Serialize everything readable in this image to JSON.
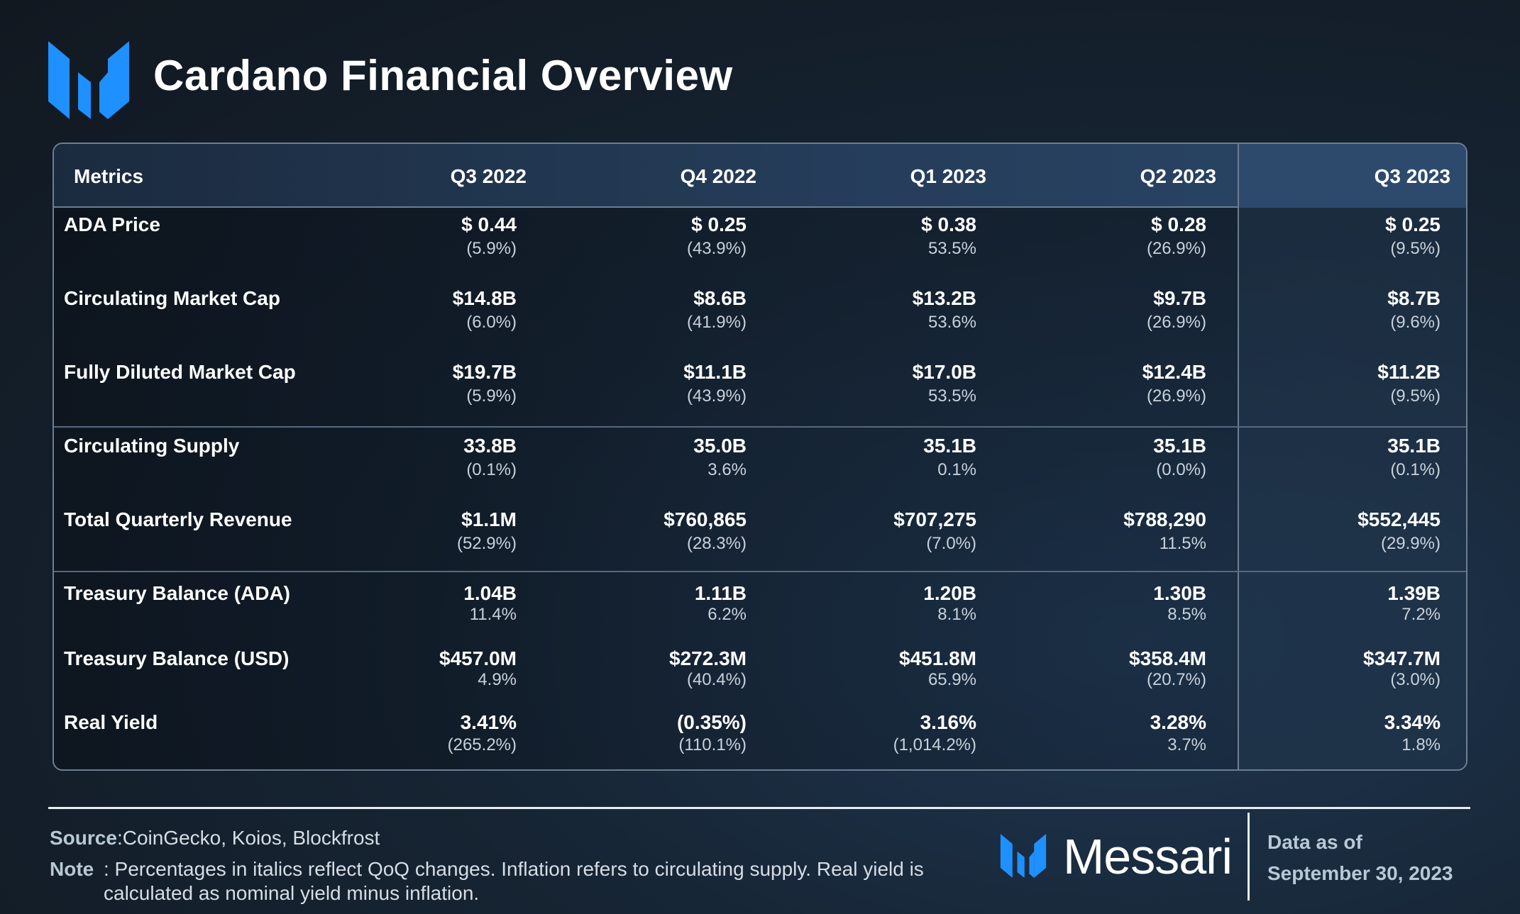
{
  "title": "Cardano Financial Overview",
  "colors": {
    "brand_blue": "#1e90ff",
    "border": "#6b7e92"
  },
  "chart_data": {
    "type": "table",
    "columns": [
      "Metrics",
      "Q3 2022",
      "Q4 2022",
      "Q1 2023",
      "Q2 2023",
      "Q3 2023"
    ],
    "rows": [
      {
        "metric": "ADA Price",
        "values": [
          "$ 0.44",
          "$ 0.25",
          "$ 0.38",
          "$ 0.28",
          "$ 0.25"
        ],
        "changes": [
          "(5.9%)",
          "(43.9%)",
          "53.5%",
          "(26.9%)",
          "(9.5%)"
        ]
      },
      {
        "metric": "Circulating Market Cap",
        "values": [
          "$14.8B",
          "$8.6B",
          "$13.2B",
          "$9.7B",
          "$8.7B"
        ],
        "changes": [
          "(6.0%)",
          "(41.9%)",
          "53.6%",
          "(26.9%)",
          "(9.6%)"
        ]
      },
      {
        "metric": "Fully Diluted Market Cap",
        "values": [
          "$19.7B",
          "$11.1B",
          "$17.0B",
          "$12.4B",
          "$11.2B"
        ],
        "changes": [
          "(5.9%)",
          "(43.9%)",
          "53.5%",
          "(26.9%)",
          "(9.5%)"
        ]
      },
      {
        "metric": "Circulating Supply",
        "values": [
          "33.8B",
          "35.0B",
          "35.1B",
          "35.1B",
          "35.1B"
        ],
        "changes": [
          "(0.1%)",
          "3.6%",
          "0.1%",
          "(0.0%)",
          "(0.1%)"
        ]
      },
      {
        "metric": "Total Quarterly Revenue",
        "values": [
          "$1.1M",
          "$760,865",
          "$707,275",
          "$788,290",
          "$552,445"
        ],
        "changes": [
          "(52.9%)",
          "(28.3%)",
          "(7.0%)",
          "11.5%",
          "(29.9%)"
        ]
      },
      {
        "metric": "Treasury Balance (ADA)",
        "values": [
          "1.04B",
          "1.11B",
          "1.20B",
          "1.30B",
          "1.39B"
        ],
        "changes": [
          "11.4%",
          "6.2%",
          "8.1%",
          "8.5%",
          "7.2%"
        ]
      },
      {
        "metric": "Treasury Balance (USD)",
        "values": [
          "$457.0M",
          "$272.3M",
          "$451.8M",
          "$358.4M",
          "$347.7M"
        ],
        "changes": [
          "4.9%",
          "(40.4%)",
          "65.9%",
          "(20.7%)",
          "(3.0%)"
        ]
      },
      {
        "metric": "Real Yield",
        "values": [
          "3.41%",
          "(0.35%)",
          "3.16%",
          "3.28%",
          "3.34%"
        ],
        "changes": [
          "(265.2%)",
          "(110.1%)",
          "(1,014.2%)",
          "3.7%",
          "1.8%"
        ]
      }
    ]
  },
  "footer": {
    "source_label": "Source",
    "source_text": ":CoinGecko, Koios, Blockfrost",
    "note_label": "Note",
    "note_text": ": Percentages in italics reflect QoQ changes. Inflation refers to circulating supply. Real yield is calculated as nominal yield minus inflation.",
    "brand": "Messari",
    "asof_label": "Data as of",
    "asof_date": "September 30, 2023"
  }
}
